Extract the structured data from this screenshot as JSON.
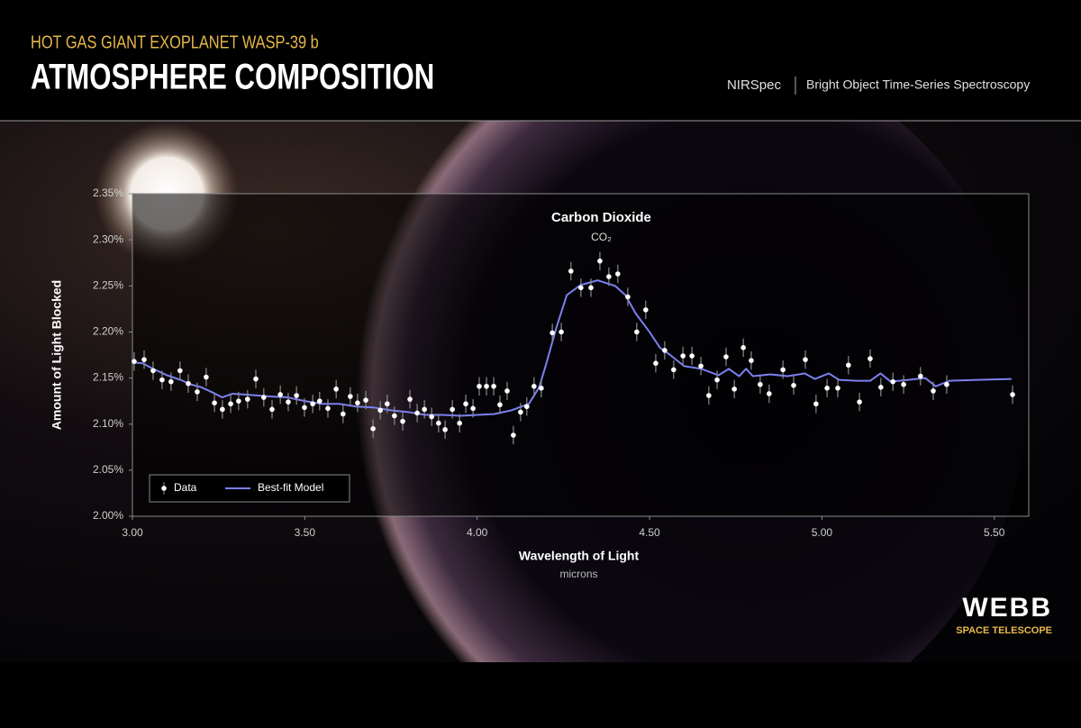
{
  "header": {
    "kicker": "HOT GAS GIANT EXOPLANET WASP-39 b",
    "title": "ATMOSPHERE COMPOSITION",
    "instrument": "NIRSpec",
    "mode": "Bright Object Time-Series Spectroscopy"
  },
  "logo": {
    "name": "WEBB",
    "subtitle": "SPACE TELESCOPE"
  },
  "chart_data": {
    "type": "line",
    "x_label": "Wavelength of Light",
    "x_unit": "microns",
    "y_label": "Amount of Light Blocked",
    "annotation": {
      "text": "Carbon Dioxide",
      "formula": "CO₂",
      "x": 4.36
    },
    "xlim": [
      3.0,
      5.6
    ],
    "ylim": [
      2.0,
      2.35
    ],
    "xticks": [
      {
        "value": 3.0,
        "label": "3.00"
      },
      {
        "value": 3.5,
        "label": "3.50"
      },
      {
        "value": 4.0,
        "label": "4.00"
      },
      {
        "value": 4.5,
        "label": "4.50"
      },
      {
        "value": 5.0,
        "label": "5.00"
      },
      {
        "value": 5.5,
        "label": "5.50"
      }
    ],
    "yticks": [
      {
        "value": 2.0,
        "label": "2.00%"
      },
      {
        "value": 2.05,
        "label": "2.05%"
      },
      {
        "value": 2.1,
        "label": "2.10%"
      },
      {
        "value": 2.15,
        "label": "2.15%"
      },
      {
        "value": 2.2,
        "label": "2.20%"
      },
      {
        "value": 2.25,
        "label": "2.25%"
      },
      {
        "value": 2.3,
        "label": "2.30%"
      },
      {
        "value": 2.35,
        "label": "2.35%"
      }
    ],
    "grid": false,
    "legend": "lower left",
    "series": [
      {
        "name": "Data",
        "type": "scatter",
        "color": "#ffffff",
        "error_color": "#8a8a8a",
        "x": [
          3.005,
          3.034,
          3.06,
          3.086,
          3.112,
          3.138,
          3.162,
          3.188,
          3.214,
          3.238,
          3.261,
          3.285,
          3.308,
          3.334,
          3.358,
          3.381,
          3.405,
          3.429,
          3.452,
          3.476,
          3.499,
          3.523,
          3.543,
          3.567,
          3.591,
          3.611,
          3.632,
          3.653,
          3.677,
          3.698,
          3.719,
          3.739,
          3.76,
          3.784,
          3.805,
          3.826,
          3.847,
          3.868,
          3.888,
          3.907,
          3.928,
          3.949,
          3.967,
          3.988,
          4.006,
          4.027,
          4.048,
          4.066,
          4.087,
          4.105,
          4.126,
          4.144,
          4.165,
          4.186,
          4.218,
          4.244,
          4.272,
          4.301,
          4.33,
          4.356,
          4.382,
          4.408,
          4.437,
          4.463,
          4.489,
          4.518,
          4.544,
          4.57,
          4.597,
          4.623,
          4.649,
          4.672,
          4.696,
          4.722,
          4.746,
          4.772,
          4.795,
          4.821,
          4.847,
          4.887,
          4.918,
          4.952,
          4.983,
          5.015,
          5.046,
          5.077,
          5.109,
          5.14,
          5.171,
          5.206,
          5.237,
          5.286,
          5.323,
          5.362,
          5.553
        ],
        "values": [
          2.168,
          2.17,
          2.158,
          2.148,
          2.146,
          2.158,
          2.144,
          2.135,
          2.151,
          2.123,
          2.116,
          2.122,
          2.125,
          2.127,
          2.149,
          2.129,
          2.116,
          2.132,
          2.124,
          2.131,
          2.118,
          2.122,
          2.125,
          2.117,
          2.138,
          2.111,
          2.13,
          2.123,
          2.126,
          2.095,
          2.115,
          2.122,
          2.109,
          2.103,
          2.127,
          2.112,
          2.116,
          2.108,
          2.101,
          2.094,
          2.116,
          2.101,
          2.122,
          2.117,
          2.141,
          2.141,
          2.141,
          2.121,
          2.136,
          2.088,
          2.113,
          2.119,
          2.141,
          2.139,
          2.199,
          2.2,
          2.266,
          2.248,
          2.248,
          2.277,
          2.26,
          2.263,
          2.238,
          2.2,
          2.224,
          2.166,
          2.18,
          2.159,
          2.174,
          2.174,
          2.163,
          2.131,
          2.148,
          2.173,
          2.138,
          2.183,
          2.169,
          2.143,
          2.133,
          2.159,
          2.142,
          2.17,
          2.122,
          2.139,
          2.139,
          2.164,
          2.124,
          2.171,
          2.14,
          2.146,
          2.143,
          2.152,
          2.136,
          2.143,
          2.132
        ],
        "errors": [
          0.01,
          0.01,
          0.01,
          0.01,
          0.01,
          0.01,
          0.01,
          0.01,
          0.01,
          0.01,
          0.01,
          0.01,
          0.01,
          0.01,
          0.01,
          0.01,
          0.01,
          0.01,
          0.01,
          0.01,
          0.01,
          0.01,
          0.01,
          0.01,
          0.01,
          0.01,
          0.01,
          0.01,
          0.01,
          0.01,
          0.01,
          0.01,
          0.01,
          0.01,
          0.01,
          0.01,
          0.01,
          0.01,
          0.01,
          0.01,
          0.01,
          0.01,
          0.01,
          0.01,
          0.01,
          0.01,
          0.01,
          0.01,
          0.01,
          0.01,
          0.01,
          0.01,
          0.01,
          0.01,
          0.01,
          0.01,
          0.01,
          0.01,
          0.01,
          0.01,
          0.01,
          0.01,
          0.01,
          0.01,
          0.01,
          0.01,
          0.01,
          0.01,
          0.01,
          0.01,
          0.01,
          0.01,
          0.01,
          0.01,
          0.01,
          0.01,
          0.01,
          0.01,
          0.01,
          0.01,
          0.01,
          0.01,
          0.01,
          0.01,
          0.01,
          0.01,
          0.01,
          0.01,
          0.01,
          0.01,
          0.01,
          0.01,
          0.01,
          0.01,
          0.01
        ]
      },
      {
        "name": "Best-fit Model",
        "type": "line",
        "color": "#7b80f0",
        "x": [
          3.0,
          3.03,
          3.06,
          3.1,
          3.14,
          3.17,
          3.2,
          3.24,
          3.26,
          3.29,
          3.33,
          3.4,
          3.45,
          3.5,
          3.55,
          3.6,
          3.65,
          3.7,
          3.75,
          3.8,
          3.85,
          3.9,
          3.95,
          4.0,
          4.05,
          4.1,
          4.15,
          4.18,
          4.2,
          4.23,
          4.26,
          4.3,
          4.35,
          4.4,
          4.43,
          4.46,
          4.5,
          4.53,
          4.56,
          4.6,
          4.65,
          4.7,
          4.73,
          4.76,
          4.78,
          4.8,
          4.85,
          4.9,
          4.95,
          4.98,
          5.02,
          5.05,
          5.1,
          5.14,
          5.17,
          5.2,
          5.25,
          5.3,
          5.33,
          5.37,
          5.45,
          5.55
        ],
        "values": [
          2.167,
          2.166,
          2.16,
          2.153,
          2.148,
          2.143,
          2.14,
          2.133,
          2.129,
          2.133,
          2.132,
          2.13,
          2.129,
          2.125,
          2.122,
          2.122,
          2.119,
          2.118,
          2.115,
          2.113,
          2.11,
          2.11,
          2.109,
          2.11,
          2.111,
          2.115,
          2.122,
          2.14,
          2.165,
          2.205,
          2.24,
          2.251,
          2.256,
          2.25,
          2.24,
          2.22,
          2.2,
          2.183,
          2.175,
          2.163,
          2.16,
          2.153,
          2.16,
          2.152,
          2.16,
          2.152,
          2.154,
          2.152,
          2.155,
          2.149,
          2.155,
          2.148,
          2.147,
          2.147,
          2.155,
          2.146,
          2.148,
          2.15,
          2.141,
          2.147,
          2.148,
          2.149
        ]
      }
    ]
  }
}
